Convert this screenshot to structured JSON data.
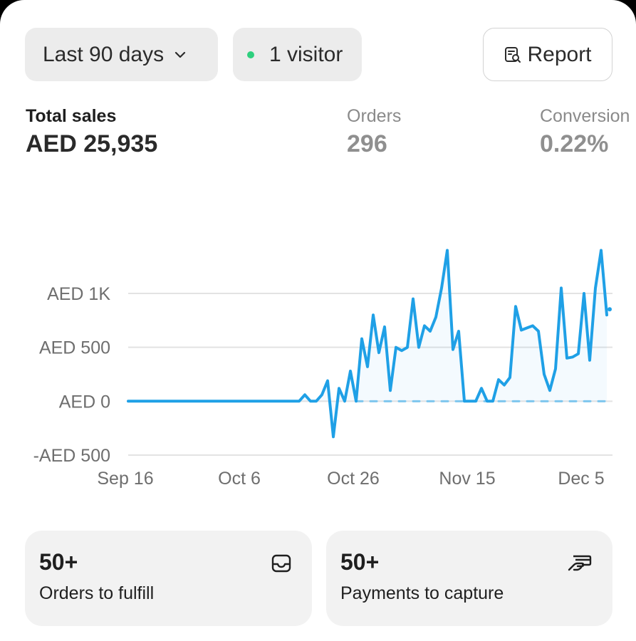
{
  "filters": {
    "date_range": "Last 90 days",
    "visitors": "1 visitor",
    "live_dot_color": "#2ecf7e"
  },
  "report_button": {
    "label": "Report",
    "icon": "report-search-icon"
  },
  "metrics": {
    "total_sales": {
      "label": "Total sales",
      "value": "AED 25,935"
    },
    "orders": {
      "label": "Orders",
      "value": "296"
    },
    "conversion": {
      "label": "Conversion",
      "value": "0.22%"
    }
  },
  "chart_data": {
    "type": "line",
    "title": "",
    "xlabel": "",
    "ylabel": "",
    "x_ticks": [
      "Sep 16",
      "Oct 6",
      "Oct 26",
      "Nov 15",
      "Dec 5"
    ],
    "y_ticks": [
      "AED 1K",
      "AED 500",
      "AED 0",
      "-AED 500"
    ],
    "ylim": [
      -500,
      1000
    ],
    "grid": true,
    "series": [
      {
        "color": "#1fa0e6",
        "points": [
          [
            "2024-09-16",
            0
          ],
          [
            "2024-10-01",
            0
          ],
          [
            "2024-10-16",
            0
          ],
          [
            "2024-10-17",
            60
          ],
          [
            "2024-10-18",
            0
          ],
          [
            "2024-10-19",
            0
          ],
          [
            "2024-10-20",
            60
          ],
          [
            "2024-10-21",
            190
          ],
          [
            "2024-10-22",
            -330
          ],
          [
            "2024-10-23",
            120
          ],
          [
            "2024-10-24",
            0
          ],
          [
            "2024-10-25",
            280
          ],
          [
            "2024-10-26",
            0
          ],
          [
            "2024-10-27",
            580
          ],
          [
            "2024-10-28",
            320
          ],
          [
            "2024-10-29",
            800
          ],
          [
            "2024-10-30",
            450
          ],
          [
            "2024-10-31",
            690
          ],
          [
            "2024-11-01",
            100
          ],
          [
            "2024-11-02",
            500
          ],
          [
            "2024-11-03",
            470
          ],
          [
            "2024-11-04",
            500
          ],
          [
            "2024-11-05",
            950
          ],
          [
            "2024-11-06",
            500
          ],
          [
            "2024-11-07",
            700
          ],
          [
            "2024-11-08",
            650
          ],
          [
            "2024-11-09",
            780
          ],
          [
            "2024-11-10",
            1050
          ],
          [
            "2024-11-11",
            1400
          ],
          [
            "2024-11-12",
            480
          ],
          [
            "2024-11-13",
            650
          ],
          [
            "2024-11-14",
            0
          ],
          [
            "2024-11-15",
            0
          ],
          [
            "2024-11-16",
            0
          ],
          [
            "2024-11-17",
            120
          ],
          [
            "2024-11-18",
            0
          ],
          [
            "2024-11-19",
            0
          ],
          [
            "2024-11-20",
            200
          ],
          [
            "2024-11-21",
            150
          ],
          [
            "2024-11-22",
            220
          ],
          [
            "2024-11-23",
            880
          ],
          [
            "2024-11-24",
            660
          ],
          [
            "2024-11-25",
            680
          ],
          [
            "2024-11-26",
            700
          ],
          [
            "2024-11-27",
            650
          ],
          [
            "2024-11-28",
            250
          ],
          [
            "2024-11-29",
            100
          ],
          [
            "2024-11-30",
            300
          ],
          [
            "2024-12-01",
            1050
          ],
          [
            "2024-12-02",
            400
          ],
          [
            "2024-12-03",
            410
          ],
          [
            "2024-12-04",
            440
          ],
          [
            "2024-12-05",
            1000
          ],
          [
            "2024-12-06",
            380
          ],
          [
            "2024-12-07",
            1050
          ],
          [
            "2024-12-08",
            1400
          ],
          [
            "2024-12-09",
            800
          ]
        ]
      },
      {
        "style": "dashed",
        "color": "#7ec6ee",
        "points": [
          [
            "2024-10-26",
            0
          ],
          [
            "2024-12-09",
            0
          ]
        ]
      }
    ]
  },
  "tiles": [
    {
      "count": "50+",
      "label": "Orders to fulfill",
      "icon": "inbox-tray-icon"
    },
    {
      "count": "50+",
      "label": "Payments to capture",
      "icon": "hand-card-icon"
    }
  ]
}
